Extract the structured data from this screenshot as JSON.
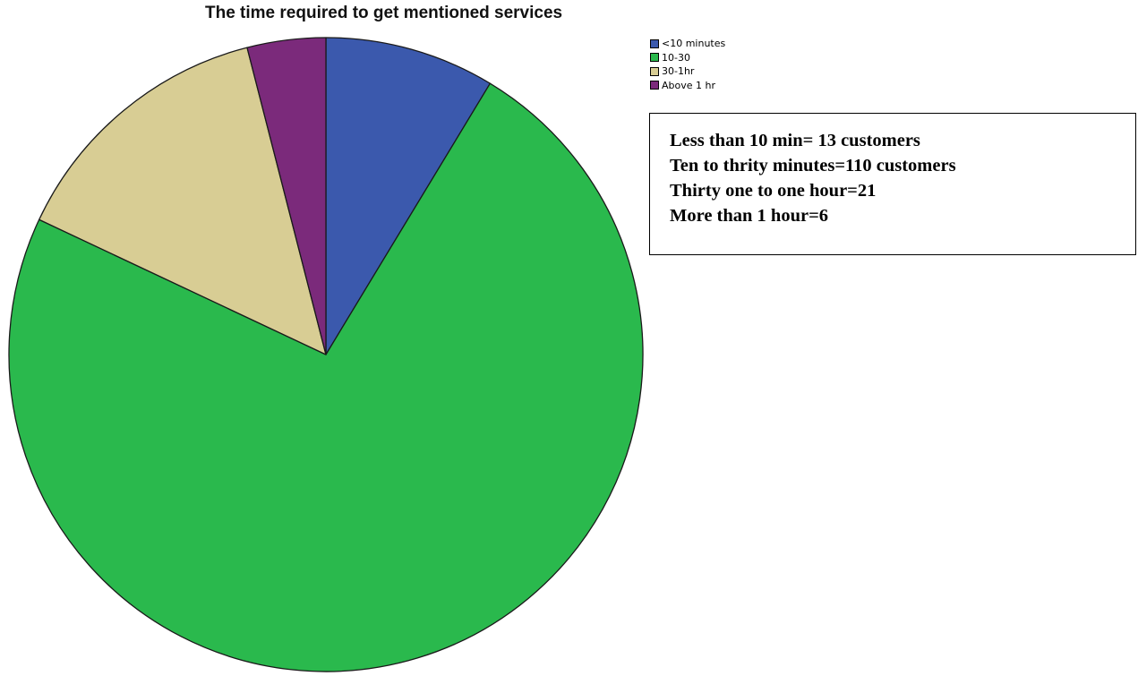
{
  "chart_data": {
    "type": "pie",
    "title": "The time required to get mentioned services",
    "categories": [
      "<10 minutes",
      "10-30",
      "30-1hr",
      "Above 1 hr"
    ],
    "values": [
      13,
      110,
      21,
      6
    ],
    "colors": [
      "#3b59ad",
      "#2ab94d",
      "#d8cd94",
      "#7b2a7b"
    ],
    "legend_position": "top-right",
    "start_angle_deg": 0,
    "direction": "clockwise"
  },
  "annotation": {
    "lines": [
      "Less than 10 min= 13 customers",
      "Ten to thrity minutes=110 customers",
      "Thirty one to one hour=21",
      "More than 1 hour=6"
    ]
  }
}
